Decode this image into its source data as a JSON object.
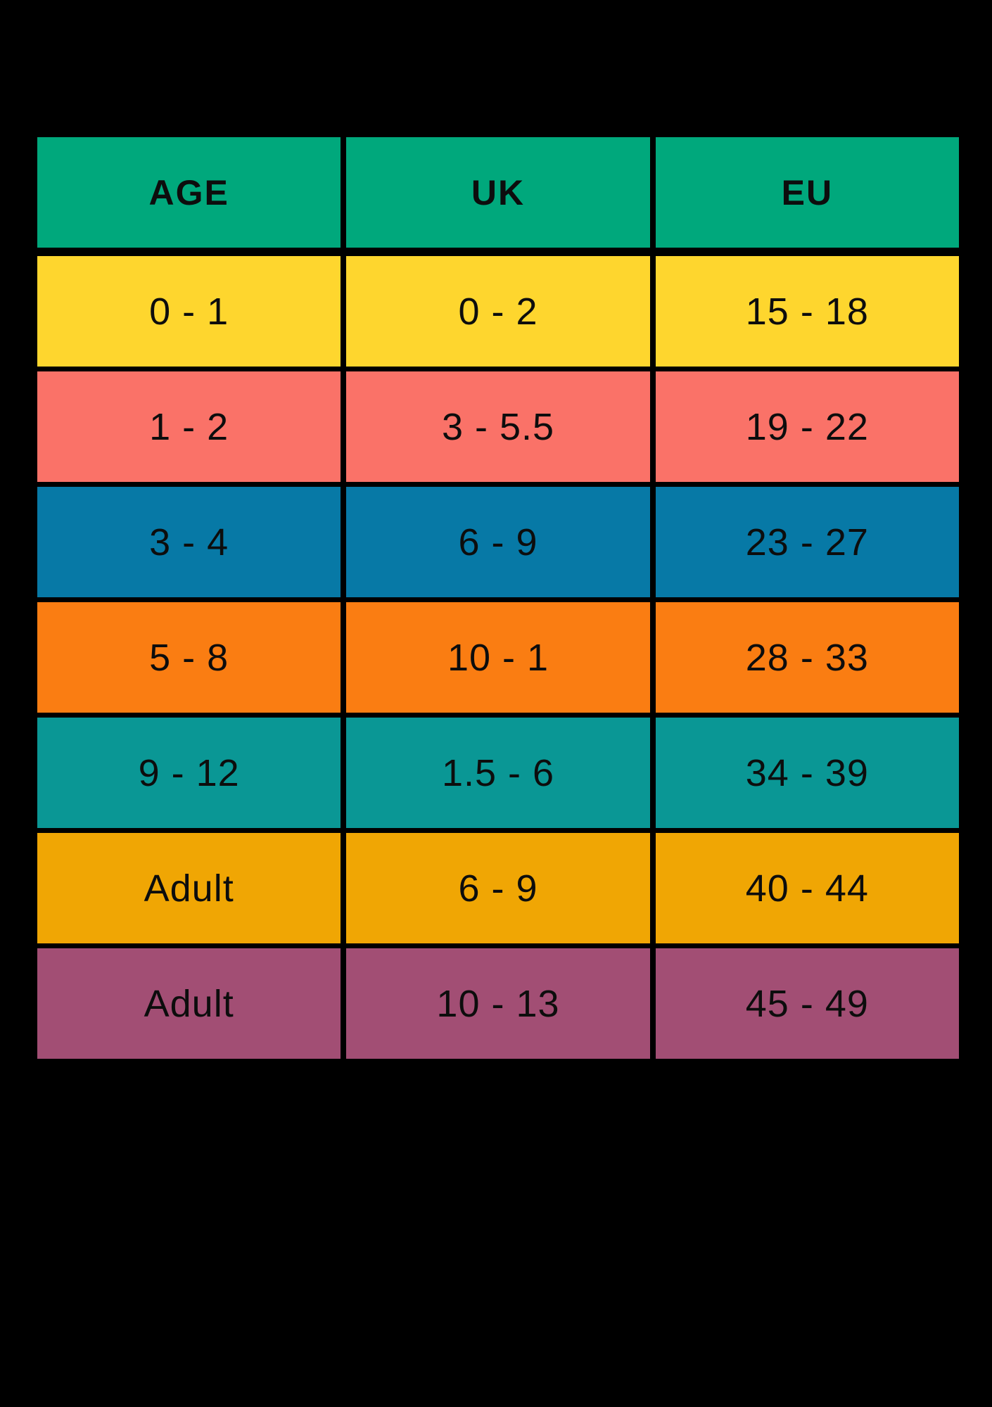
{
  "chart_data": {
    "type": "table",
    "title": "",
    "columns": [
      "AGE",
      "UK",
      "EU"
    ],
    "rows": [
      {
        "age": "0 - 1",
        "uk": "0 - 2",
        "eu": "15 - 18"
      },
      {
        "age": "1 - 2",
        "uk": "3 - 5.5",
        "eu": "19 - 22"
      },
      {
        "age": "3 - 4",
        "uk": "6 - 9",
        "eu": "23 - 27"
      },
      {
        "age": "5 - 8",
        "uk": "10 - 1",
        "eu": "28 - 33"
      },
      {
        "age": "9 - 12",
        "uk": "1.5 - 6",
        "eu": "34 - 39"
      },
      {
        "age": "Adult",
        "uk": "6 - 9",
        "eu": "40 - 44"
      },
      {
        "age": "Adult",
        "uk": "10 - 13",
        "eu": "45 - 49"
      }
    ],
    "colors": {
      "header": "#00A87C",
      "rows": [
        "#FED62E",
        "#FA7268",
        "#0779A6",
        "#FA7D12",
        "#0A9795",
        "#F0A604",
        "#A24E74"
      ],
      "background": "#000000",
      "grid_lines": "#000000",
      "text": "#0D0D0D"
    },
    "layout": {
      "grid": "3 equal columns x 8 rows (1 header + 7 data)",
      "legend": "none",
      "gridlines": "black gaps between all cells, thicker below header"
    }
  }
}
